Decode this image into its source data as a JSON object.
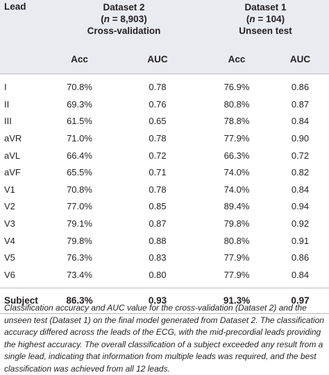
{
  "table": {
    "lead_header": "Lead",
    "groups": [
      {
        "name": "Dataset 2",
        "n_label": "n",
        "n_value": " = 8,903)",
        "method": "Cross-validation"
      },
      {
        "name": "Dataset 1",
        "n_label": "n",
        "n_value": " = 104)",
        "method": "Unseen test"
      }
    ],
    "sub_headers": [
      "Acc",
      "AUC",
      "Acc",
      "AUC"
    ],
    "rows": [
      {
        "lead": "I",
        "acc1": "70.8%",
        "auc1": "0.78",
        "acc2": "76.9%",
        "auc2": "0.86"
      },
      {
        "lead": "II",
        "acc1": "69.3%",
        "auc1": "0.76",
        "acc2": "80.8%",
        "auc2": "0.87"
      },
      {
        "lead": "III",
        "acc1": "61.5%",
        "auc1": "0.65",
        "acc2": "78.8%",
        "auc2": "0.84"
      },
      {
        "lead": "aVR",
        "acc1": "71.0%",
        "auc1": "0.78",
        "acc2": "77.9%",
        "auc2": "0.90"
      },
      {
        "lead": "aVL",
        "acc1": "66.4%",
        "auc1": "0.72",
        "acc2": "66.3%",
        "auc2": "0.72"
      },
      {
        "lead": "aVF",
        "acc1": "65.5%",
        "auc1": "0.71",
        "acc2": "74.0%",
        "auc2": "0.82"
      },
      {
        "lead": "V1",
        "acc1": "70.8%",
        "auc1": "0.78",
        "acc2": "74.0%",
        "auc2": "0.84"
      },
      {
        "lead": "V2",
        "acc1": "77.0%",
        "auc1": "0.85",
        "acc2": "89.4%",
        "auc2": "0.94"
      },
      {
        "lead": "V3",
        "acc1": "79.1%",
        "auc1": "0.87",
        "acc2": "79.8%",
        "auc2": "0.92"
      },
      {
        "lead": "V4",
        "acc1": "79.8%",
        "auc1": "0.88",
        "acc2": "80.8%",
        "auc2": "0.91"
      },
      {
        "lead": "V5",
        "acc1": "76.3%",
        "auc1": "0.83",
        "acc2": "77.9%",
        "auc2": "0.86"
      },
      {
        "lead": "V6",
        "acc1": "73.4%",
        "auc1": "0.80",
        "acc2": "77.9%",
        "auc2": "0.84"
      }
    ],
    "summary": {
      "lead": "Subject",
      "acc1": "86.3%",
      "auc1": "0.93",
      "acc2": "91.3%",
      "auc2": "0.97"
    }
  },
  "caption": "Classification accuracy and AUC value for the cross-validation (Dataset 2) and the unseen test (Dataset 1) on the final model generated from Dataset 2. The classification accuracy differed across the leads of the ECG, with the mid-precordial leads providing the highest accuracy. The overall classification of a subject exceeded any result from a single lead, indicating that information from multiple leads was required, and the best classification was achieved from all 12 leads."
}
